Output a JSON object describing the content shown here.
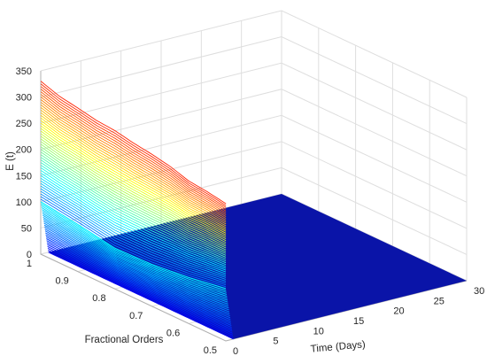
{
  "chart_data": {
    "type": "surface3d",
    "title": "",
    "xlabel": "Time (Days)",
    "ylabel": "Fractional Orders",
    "zlabel": "E (t)",
    "xlim": [
      0,
      30
    ],
    "ylim": [
      0.5,
      1
    ],
    "zlim": [
      0,
      350
    ],
    "xticks": [
      0,
      5,
      10,
      15,
      20,
      25,
      30
    ],
    "yticks": [
      0.5,
      0.6,
      0.7,
      0.8,
      0.9,
      1
    ],
    "zticks": [
      0,
      50,
      100,
      150,
      200,
      250,
      300,
      350
    ],
    "grid": true,
    "colormap": "jet",
    "series": [
      {
        "fractional_order": 1.0,
        "curve": "E(t) at t = 0 across fractional orders",
        "points": [
          {
            "order": 1.0,
            "value": 330
          },
          {
            "order": 0.95,
            "value": 318
          },
          {
            "order": 0.9,
            "value": 312
          },
          {
            "order": 0.85,
            "value": 305
          },
          {
            "order": 0.8,
            "value": 302
          },
          {
            "order": 0.75,
            "value": 295
          },
          {
            "order": 0.7,
            "value": 290
          },
          {
            "order": 0.65,
            "value": 283
          },
          {
            "order": 0.6,
            "value": 272
          },
          {
            "order": 0.55,
            "value": 268
          },
          {
            "order": 0.5,
            "value": 262
          }
        ]
      }
    ],
    "profile_at_t1": {
      "time": 1,
      "points": [
        {
          "order": 1.0,
          "value": 100
        },
        {
          "order": 0.9,
          "value": 90
        },
        {
          "order": 0.8,
          "value": 78
        },
        {
          "order": 0.7,
          "value": 80
        },
        {
          "order": 0.6,
          "value": 88
        },
        {
          "order": 0.5,
          "value": 100
        }
      ]
    },
    "steady_state_value_after_t1": 0
  }
}
